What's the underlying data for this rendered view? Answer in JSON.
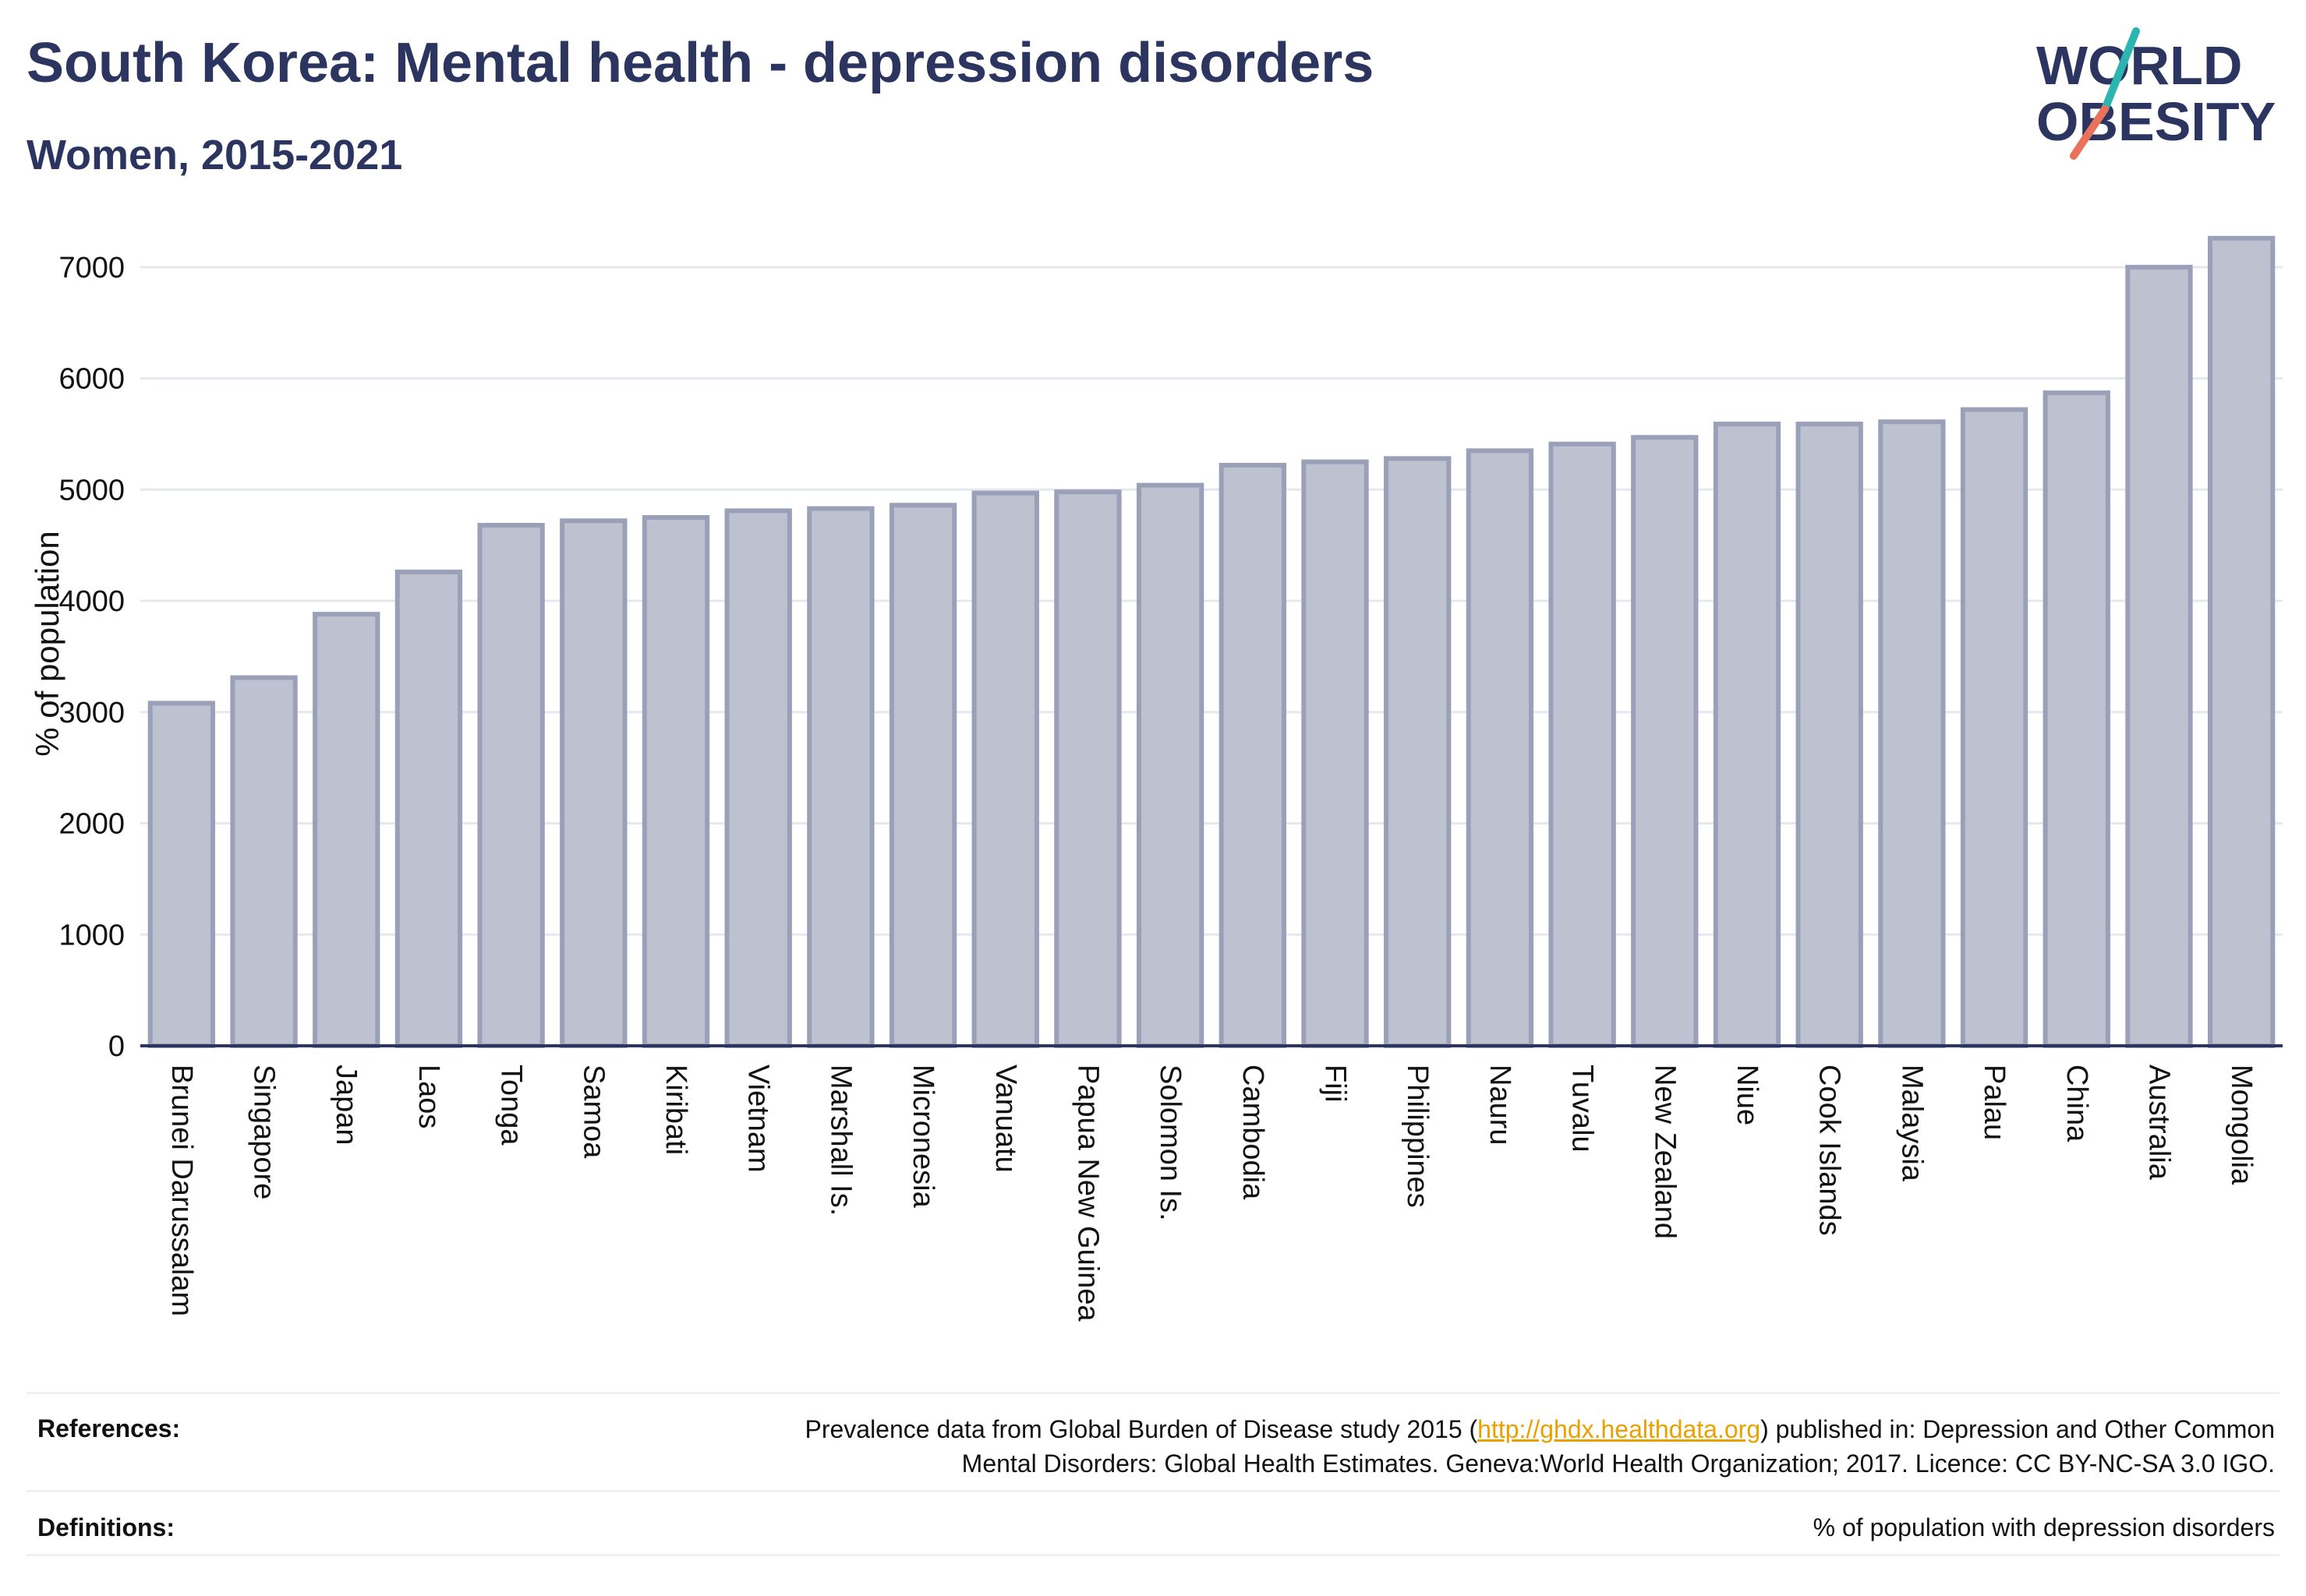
{
  "header": {
    "title": "South Korea: Mental health - depression disorders",
    "subtitle": "Women, 2015-2021"
  },
  "logo": {
    "line1": "WORLD",
    "line2": "OBESITY",
    "text_color": "#2b3560",
    "slash_colors": [
      "#2bb5b0",
      "#e8735a"
    ]
  },
  "chart_data": {
    "type": "bar",
    "ylabel": "% of population",
    "ylim": [
      0,
      7300
    ],
    "yticks": [
      0,
      1000,
      2000,
      3000,
      4000,
      5000,
      6000,
      7000
    ],
    "grid": true,
    "bar_color": "#bec2d0",
    "bar_edge_color": "#9aa0b8",
    "categories": [
      "Brunei Darussalam",
      "Singapore",
      "Japan",
      "Laos",
      "Tonga",
      "Samoa",
      "Kiribati",
      "Vietnam",
      "Marshall Is.",
      "Micronesia",
      "Vanuatu",
      "Papua New Guinea",
      "Solomon Is.",
      "Cambodia",
      "Fiji",
      "Philippines",
      "Nauru",
      "Tuvalu",
      "New Zealand",
      "Niue",
      "Cook Islands",
      "Malaysia",
      "Palau",
      "China",
      "Australia",
      "Mongolia"
    ],
    "values": [
      3080,
      3310,
      3880,
      4260,
      4680,
      4720,
      4750,
      4810,
      4830,
      4860,
      4970,
      4980,
      5040,
      5220,
      5250,
      5280,
      5350,
      5410,
      5470,
      5590,
      5590,
      5610,
      5720,
      5870,
      7000,
      7260
    ]
  },
  "footer": {
    "references_label": "References:",
    "references_text_before": "Prevalence data from Global Burden of Disease study 2015 (",
    "references_link": "http://ghdx.healthdata.org",
    "references_text_after": ") published in: Depression and Other Common",
    "references_text_line2": "Mental Disorders: Global Health Estimates. Geneva:World Health Organization; 2017. Licence: CC BY-NC-SA 3.0 IGO.",
    "definitions_label": "Definitions:",
    "definitions_text": "% of population with depression disorders"
  }
}
